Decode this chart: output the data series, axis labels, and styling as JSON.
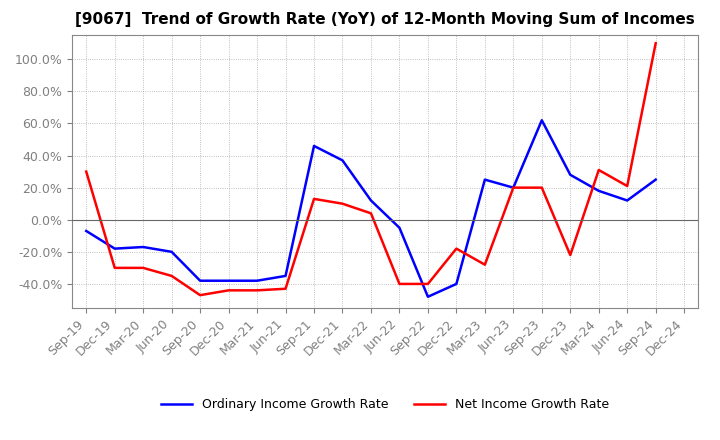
{
  "title": "[9067]  Trend of Growth Rate (YoY) of 12-Month Moving Sum of Incomes",
  "x_labels": [
    "Sep-19",
    "Dec-19",
    "Mar-20",
    "Jun-20",
    "Sep-20",
    "Dec-20",
    "Mar-21",
    "Jun-21",
    "Sep-21",
    "Dec-21",
    "Mar-22",
    "Jun-22",
    "Sep-22",
    "Dec-22",
    "Mar-23",
    "Jun-23",
    "Sep-23",
    "Dec-23",
    "Mar-24",
    "Jun-24",
    "Sep-24",
    "Dec-24"
  ],
  "ordinary_income": [
    -0.07,
    -0.18,
    -0.17,
    -0.2,
    -0.38,
    -0.38,
    -0.38,
    -0.35,
    0.46,
    0.37,
    0.12,
    -0.05,
    -0.48,
    -0.4,
    0.25,
    0.2,
    0.62,
    0.28,
    0.18,
    0.12,
    0.25,
    null
  ],
  "net_income": [
    0.3,
    -0.3,
    -0.3,
    -0.35,
    -0.47,
    -0.44,
    -0.44,
    -0.43,
    0.13,
    0.1,
    0.04,
    -0.4,
    -0.4,
    -0.18,
    -0.28,
    0.2,
    0.2,
    -0.22,
    0.31,
    0.21,
    1.1,
    null
  ],
  "ordinary_color": "#0000FF",
  "net_color": "#FF0000",
  "ylim": [
    -0.55,
    1.15
  ],
  "yticks": [
    -0.4,
    -0.2,
    0.0,
    0.2,
    0.4,
    0.6,
    0.8,
    1.0
  ],
  "legend_ordinary": "Ordinary Income Growth Rate",
  "legend_net": "Net Income Growth Rate",
  "bg_color": "#FFFFFF",
  "plot_bg_color": "#FFFFFF",
  "tick_color": "#808080",
  "grid_color": "#999999",
  "title_fontsize": 11,
  "tick_fontsize": 9,
  "legend_fontsize": 9
}
